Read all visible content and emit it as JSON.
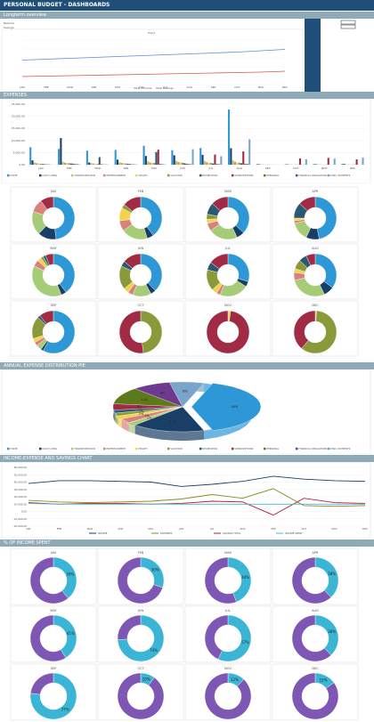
{
  "title": "PERSONAL BUDGET - DASHBOARDS",
  "sections": {
    "longterm": "Longterm overview",
    "expenses": "EXPENSES",
    "annual_pie": "ANNUAL EXPENSE DISTRIBUTION PIE",
    "income_chart": "INCOME-EXPENSE AND SAVINGS CHART",
    "pct_income": "% OF INCOME SPENT"
  },
  "colors": {
    "titlebar": "#1f4e79",
    "section": "#8ea9b8",
    "cat": [
      "#2e97d6",
      "#1a3f66",
      "#a6cc77",
      "#d9817a",
      "#f2d34b",
      "#8a9a3b",
      "#2a5a73",
      "#a12b44",
      "#5d7a1a",
      "#6e3a8f",
      "#7aa4c9",
      "#b21e34"
    ]
  },
  "overview": {
    "row_labels": [
      "Balance",
      "Savings"
    ],
    "legend": [
      "Total Incomes",
      "Total Savings"
    ],
    "trend_title": "Trend",
    "series": {
      "income": [
        0.55,
        0.57,
        0.59,
        0.61,
        0.63,
        0.65,
        0.67,
        0.69,
        0.71,
        0.73,
        0.76,
        0.79
      ],
      "savings": [
        0.18,
        0.19,
        0.2,
        0.21,
        0.22,
        0.23,
        0.24,
        0.25,
        0.26,
        0.27,
        0.28,
        0.3
      ]
    }
  },
  "chart_data": [
    {
      "type": "bar",
      "title": "",
      "categories": [
        "JAN",
        "FEB",
        "MAR",
        "APR",
        "MAY",
        "JUN",
        "JUL",
        "AUG",
        "SEP",
        "OCT",
        "NOV",
        "DEC"
      ],
      "yticks": [
        "25,000.00",
        "20,000.00",
        "15,000.00",
        "10,000.00",
        "5,000.00",
        "0.00"
      ],
      "ylim": [
        0,
        25000
      ],
      "series": [
        {
          "name": "HOME",
          "values": [
            7200,
            6500,
            5800,
            6100,
            7800,
            6000,
            6900,
            22800,
            300,
            200,
            300,
            400
          ]
        },
        {
          "name": "DAILY LIVING",
          "values": [
            1800,
            11000,
            900,
            2100,
            3600,
            3900,
            4100,
            6800,
            200,
            150,
            200,
            300
          ]
        },
        {
          "name": "TRANSPORTATION",
          "values": [
            900,
            1200,
            600,
            1000,
            1400,
            1600,
            1500,
            1800,
            100,
            100,
            100,
            120
          ]
        },
        {
          "name": "ENTERTAINMENT",
          "values": [
            600,
            800,
            500,
            700,
            900,
            1100,
            1000,
            1200,
            80,
            90,
            80,
            100
          ]
        },
        {
          "name": "HEALTH",
          "values": [
            500,
            700,
            400,
            600,
            800,
            900,
            800,
            900,
            60,
            70,
            60,
            80
          ]
        },
        {
          "name": "VACATION",
          "values": [
            400,
            600,
            300,
            500,
            700,
            800,
            700,
            800,
            50,
            60,
            50,
            60
          ]
        },
        {
          "name": "RECREATION",
          "values": [
            300,
            500,
            3100,
            400,
            5200,
            600,
            500,
            600,
            40,
            50,
            40,
            50
          ]
        },
        {
          "name": "SUBSCRIPTIONS",
          "values": [
            200,
            400,
            200,
            300,
            6200,
            400,
            4200,
            5500,
            30,
            2600,
            2800,
            2200
          ]
        },
        {
          "name": "PERSONAL",
          "values": [
            150,
            300,
            100,
            200,
            300,
            300,
            300,
            400,
            20,
            30,
            20,
            30
          ]
        },
        {
          "name": "FINANCIAL OBLIGATIONS",
          "values": [
            100,
            200,
            100,
            150,
            200,
            200,
            200,
            300,
            15,
            20,
            15,
            20
          ]
        },
        {
          "name": "MISC. PAYMENTS",
          "values": [
            80,
            150,
            80,
            120,
            150,
            6400,
            3500,
            10500,
            10,
            2200,
            2500,
            2900
          ]
        }
      ]
    },
    {
      "type": "pie",
      "title": "",
      "categories": [
        "JAN",
        "FEB",
        "MAR",
        "APR",
        "MAY",
        "JUN",
        "JUL",
        "AUG",
        "SEP",
        "OCT",
        "NOV",
        "DEC"
      ],
      "series": [
        {
          "name": "JAN",
          "values": [
            48,
            14,
            18,
            10,
            0,
            0,
            0,
            10,
            0,
            0,
            0,
            0
          ]
        },
        {
          "name": "FEB",
          "values": [
            40,
            5,
            20,
            8,
            10,
            3,
            0,
            14,
            0,
            0,
            0,
            0
          ]
        },
        {
          "name": "MAR",
          "values": [
            37,
            6,
            22,
            6,
            3,
            4,
            9,
            13,
            0,
            0,
            0,
            0
          ]
        },
        {
          "name": "APR",
          "values": [
            47,
            10,
            14,
            2,
            2,
            0,
            12,
            13,
            0,
            0,
            0,
            0
          ]
        },
        {
          "name": "MAY",
          "values": [
            40,
            4,
            38,
            5,
            3,
            2,
            2,
            6,
            0,
            0,
            0,
            0
          ]
        },
        {
          "name": "JUN",
          "values": [
            38,
            4,
            14,
            4,
            4,
            18,
            4,
            14,
            0,
            0,
            0,
            0
          ]
        },
        {
          "name": "JUL",
          "values": [
            30,
            4,
            22,
            3,
            4,
            16,
            6,
            15,
            0,
            0,
            0,
            0
          ]
        },
        {
          "name": "AUG",
          "values": [
            35,
            8,
            28,
            6,
            3,
            7,
            6,
            7,
            0,
            0,
            0,
            0
          ]
        },
        {
          "name": "SEP",
          "values": [
            58,
            2,
            4,
            3,
            3,
            17,
            2,
            11,
            0,
            0,
            0,
            0
          ]
        },
        {
          "name": "OCT",
          "values": [
            0,
            0,
            0,
            0,
            0,
            48,
            0,
            52,
            0,
            0,
            0,
            0
          ]
        },
        {
          "name": "NOV",
          "values": [
            0,
            0,
            0,
            0,
            2,
            0,
            0,
            98,
            0,
            0,
            0,
            0
          ]
        },
        {
          "name": "DEC",
          "values": [
            0,
            0,
            0,
            0,
            1,
            60,
            0,
            39,
            0,
            0,
            0,
            0
          ]
        }
      ]
    },
    {
      "type": "pie",
      "title": "",
      "categories": [
        "HOME",
        "DAILY LIVING",
        "TRANSPORTATION",
        "ENTERTAINMENT",
        "HEALTH",
        "VACATION",
        "RECREATION",
        "SUBSCRIPTIONS",
        "PERSONAL",
        "FINANCIAL OBLIGATIONS",
        "MISC. PAYMENTS"
      ],
      "values": [
        40,
        17,
        2,
        3,
        2,
        2,
        2,
        4,
        11,
        9,
        8
      ],
      "labels": [
        "40%",
        "17%",
        "2%",
        "3%",
        "2%",
        "2%",
        "2%",
        "4%",
        "11%",
        "9%",
        "8%"
      ]
    },
    {
      "type": "line",
      "title": "",
      "categories": [
        "JAN",
        "FEB",
        "MAR",
        "APR",
        "MAY",
        "JUN",
        "JUL",
        "AUG",
        "SEP",
        "OCT",
        "NOV",
        "DEC"
      ],
      "yticks": [
        "60,000.00",
        "50,000.00",
        "40,000.00",
        "30,000.00",
        "20,000.00",
        "10,000.00",
        "0.00",
        "-10,000.00",
        "-20,000.00"
      ],
      "ylim": [
        -20000,
        60000
      ],
      "series": [
        {
          "name": "INCOME",
          "values": [
            38000,
            42000,
            42000,
            41000,
            40000,
            34000,
            37000,
            41000,
            48000,
            44000,
            42000,
            41000
          ]
        },
        {
          "name": "EXPENSES",
          "values": [
            15000,
            13000,
            12000,
            13000,
            14000,
            17000,
            23000,
            18000,
            31000,
            8000,
            7000,
            8000
          ]
        },
        {
          "name": "SAVINGS TOTAL",
          "values": [
            12000,
            10000,
            11000,
            11000,
            10000,
            11000,
            14000,
            13000,
            -5000,
            18000,
            12000,
            11000
          ]
        },
        {
          "name": "INCOME SPENT",
          "values": [
            11000,
            10000,
            10000,
            10000,
            10000,
            10000,
            10000,
            10000,
            10000,
            10000,
            10000,
            10000
          ]
        }
      ]
    },
    {
      "type": "pie",
      "title": "",
      "categories": [
        "JAN",
        "FEB",
        "MAR",
        "APR",
        "MAY",
        "JUN",
        "JUL",
        "AUG",
        "SEP",
        "OCT",
        "NOV",
        "DEC"
      ],
      "values": [
        39,
        30,
        44,
        38,
        41,
        74,
        57,
        38,
        77,
        10,
        12,
        15
      ],
      "labels": [
        "39%",
        "30%",
        "44%",
        "38%",
        "41%",
        "74%",
        "57%",
        "38%",
        "77%",
        "10%",
        "12%",
        "15%"
      ]
    }
  ]
}
